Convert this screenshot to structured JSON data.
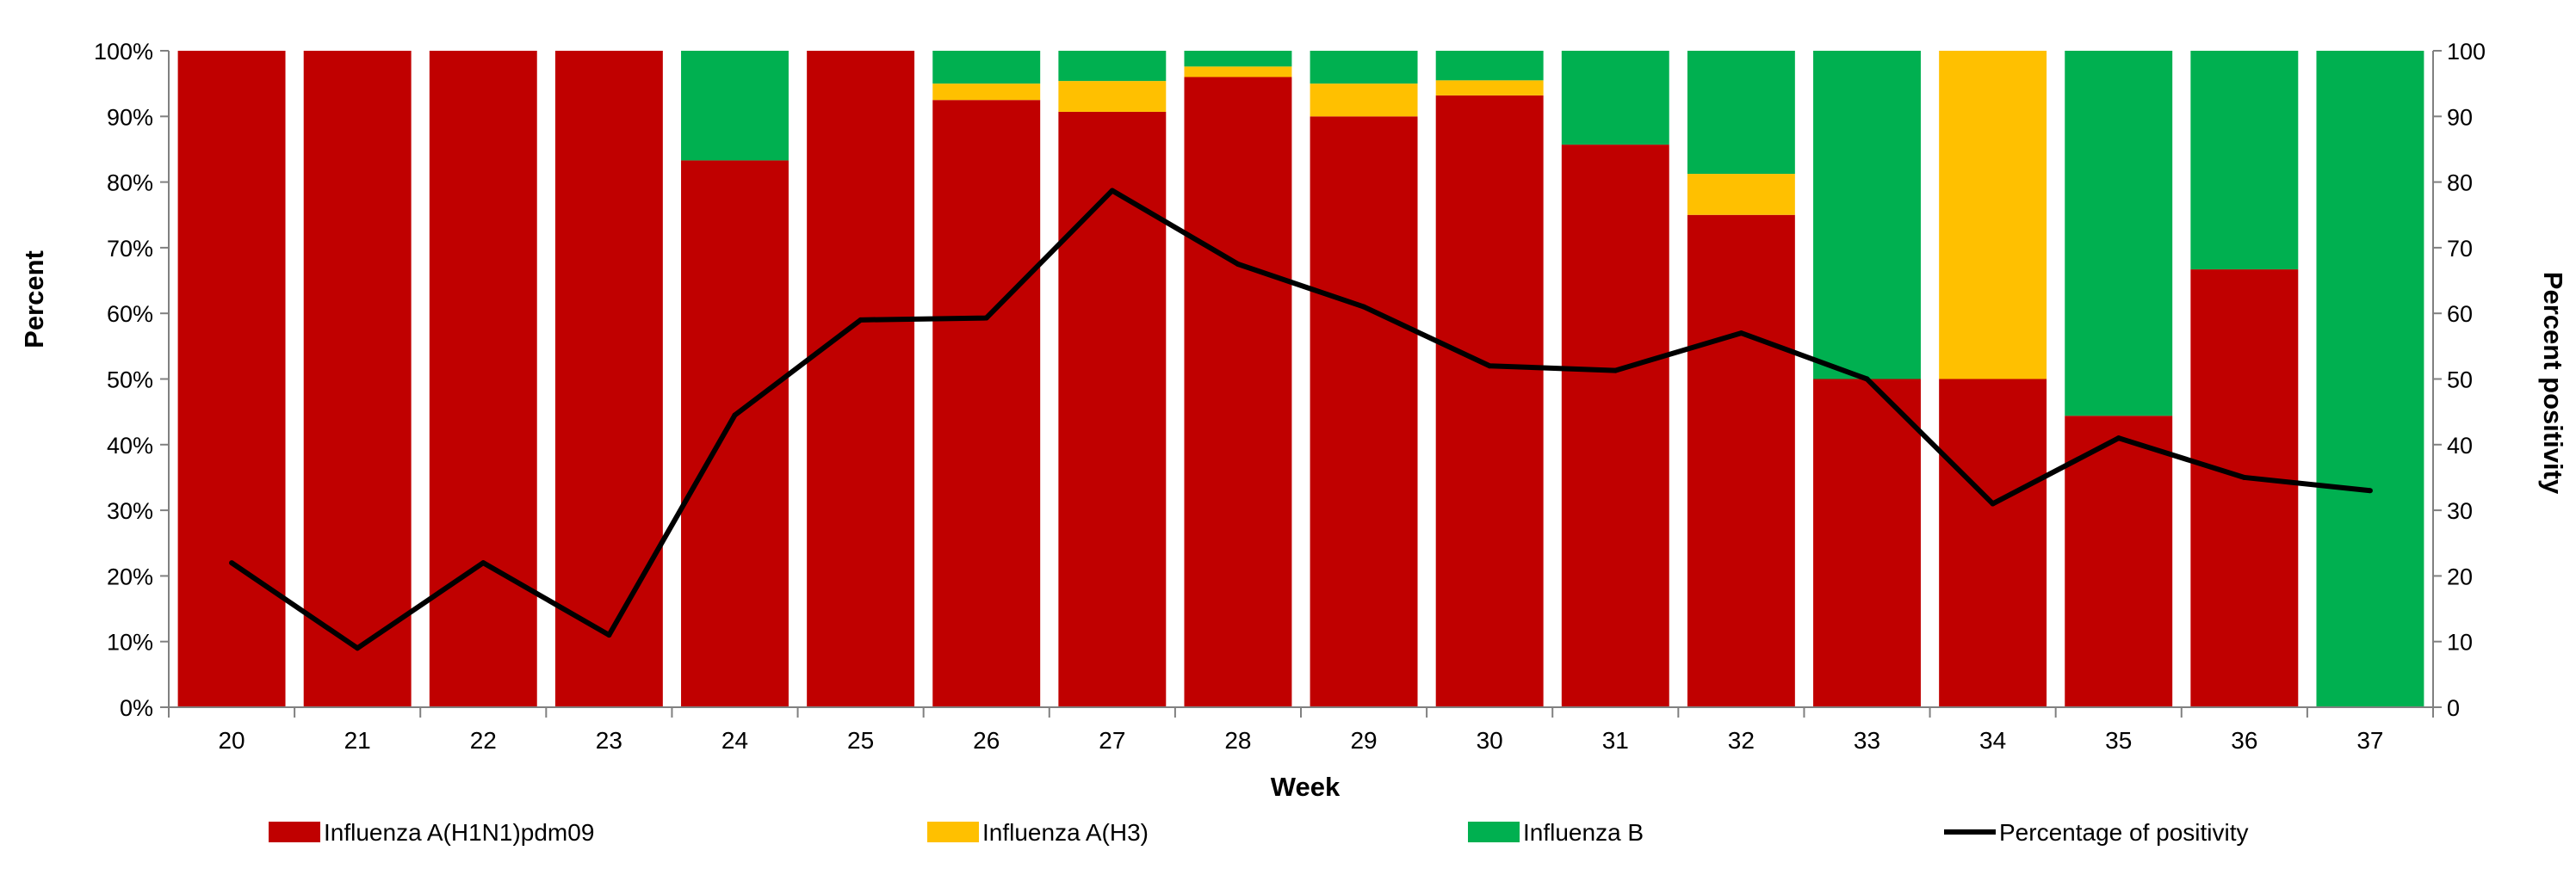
{
  "chart_data": {
    "type": "bar",
    "stacked": true,
    "categories": [
      "20",
      "21",
      "22",
      "23",
      "24",
      "25",
      "26",
      "27",
      "28",
      "29",
      "30",
      "31",
      "32",
      "33",
      "34",
      "35",
      "36",
      "37"
    ],
    "series": [
      {
        "name": "Influenza A(H1N1)pdm09",
        "color": "#c00000",
        "values": [
          100,
          100,
          100,
          100,
          83.3,
          100,
          92.5,
          90.7,
          96,
          90,
          93.2,
          85.7,
          75,
          50,
          50,
          44.4,
          66.7,
          0
        ]
      },
      {
        "name": "Influenza A(H3)",
        "color": "#ffc000",
        "values": [
          0,
          0,
          0,
          0,
          0,
          0,
          2.5,
          4.7,
          1.6,
          5,
          2.3,
          0,
          6.25,
          0,
          50,
          0,
          0,
          0
        ]
      },
      {
        "name": "Influenza B",
        "color": "#00b050",
        "values": [
          0,
          0,
          0,
          0,
          16.7,
          0,
          5,
          4.6,
          2.4,
          5,
          4.5,
          14.3,
          18.75,
          50,
          0,
          55.6,
          33.3,
          100
        ]
      }
    ],
    "line": {
      "name": "Percentage of positivity",
      "color": "#000000",
      "values": [
        22,
        9,
        22,
        11,
        44.5,
        59,
        59.3,
        78.7,
        67.5,
        61,
        52,
        51.3,
        57,
        50,
        31,
        41,
        35,
        33
      ]
    },
    "xlabel": "Week",
    "ylabel": "Percent",
    "y2label": "Percent positivity",
    "ylim": [
      0,
      100
    ],
    "y2lim": [
      0,
      100
    ],
    "yticks": [
      "0%",
      "10%",
      "20%",
      "30%",
      "40%",
      "50%",
      "60%",
      "70%",
      "80%",
      "90%",
      "100%"
    ],
    "y2ticks": [
      "0",
      "10",
      "20",
      "30",
      "40",
      "50",
      "60",
      "70",
      "80",
      "90",
      "100"
    ],
    "legend_position": "bottom"
  }
}
